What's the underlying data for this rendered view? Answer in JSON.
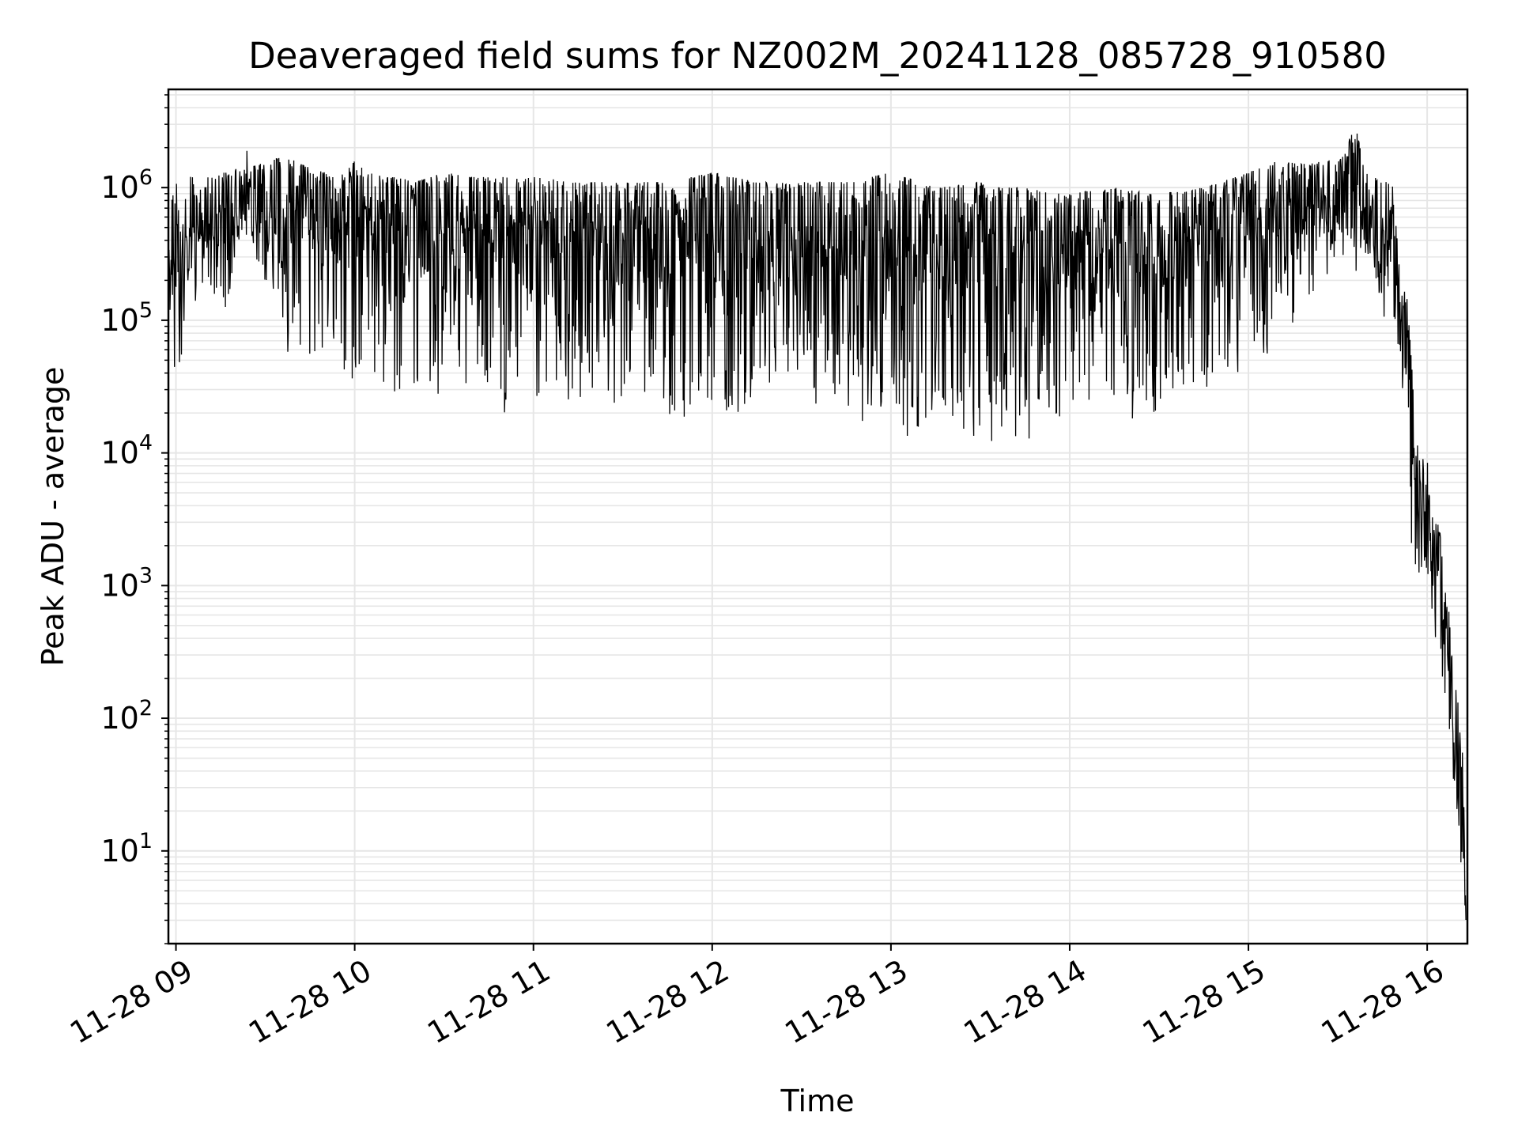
{
  "chart_data": {
    "type": "line",
    "title": "Deaveraged field sums for NZ002M_20241128_085728_910580",
    "xlabel": "Time",
    "ylabel": "Peak ADU - average",
    "yscale": "log",
    "grid": "major and minor",
    "line_color": "#000000",
    "xlim": [
      "2024-11-28 08:57:28",
      "2024-11-28 16:13:30"
    ],
    "ylim": [
      2,
      5500000
    ],
    "xticks": [
      {
        "value": "2024-11-28 09:00",
        "label": "11-28 09"
      },
      {
        "value": "2024-11-28 10:00",
        "label": "11-28 10"
      },
      {
        "value": "2024-11-28 11:00",
        "label": "11-28 11"
      },
      {
        "value": "2024-11-28 12:00",
        "label": "11-28 12"
      },
      {
        "value": "2024-11-28 13:00",
        "label": "11-28 13"
      },
      {
        "value": "2024-11-28 14:00",
        "label": "11-28 14"
      },
      {
        "value": "2024-11-28 15:00",
        "label": "11-28 15"
      },
      {
        "value": "2024-11-28 16:00",
        "label": "11-28 16"
      }
    ],
    "yticks": [
      {
        "value": 10,
        "base": "10",
        "exp": "1"
      },
      {
        "value": 100,
        "base": "10",
        "exp": "2"
      },
      {
        "value": 1000,
        "base": "10",
        "exp": "3"
      },
      {
        "value": 10000,
        "base": "10",
        "exp": "4"
      },
      {
        "value": 100000,
        "base": "10",
        "exp": "5"
      },
      {
        "value": 1000000,
        "base": "10",
        "exp": "6"
      }
    ],
    "series": [
      {
        "x": [
          "2024-11-28 08:57:30",
          "2024-11-28 09:00:00",
          "2024-11-28 09:02:00",
          "2024-11-28 09:03:30",
          "2024-11-28 09:05:00",
          "2024-11-28 09:08:00",
          "2024-11-28 09:10:00",
          "2024-11-28 09:12:00",
          "2024-11-28 09:15:00",
          "2024-11-28 09:20:00",
          "2024-11-28 09:25:00",
          "2024-11-28 09:28:00",
          "2024-11-28 09:30:00",
          "2024-11-28 09:35:00",
          "2024-11-28 09:40:00",
          "2024-11-28 09:45:00",
          "2024-11-28 09:50:00",
          "2024-11-28 09:52:00",
          "2024-11-28 09:55:00",
          "2024-11-28 10:00:00",
          "2024-11-28 10:05:00",
          "2024-11-28 10:10:00",
          "2024-11-28 10:15:00",
          "2024-11-28 10:20:00",
          "2024-11-28 10:30:00",
          "2024-11-28 10:40:00",
          "2024-11-28 10:50:00",
          "2024-11-28 11:00:00",
          "2024-11-28 11:15:00",
          "2024-11-28 11:30:00",
          "2024-11-28 11:45:00",
          "2024-11-28 12:00:00",
          "2024-11-28 12:15:00",
          "2024-11-28 12:30:00",
          "2024-11-28 12:45:00",
          "2024-11-28 13:00:00",
          "2024-11-28 13:15:00",
          "2024-11-28 13:30:00",
          "2024-11-28 13:35:00",
          "2024-11-28 13:45:00",
          "2024-11-28 13:55:00",
          "2024-11-28 14:00:00",
          "2024-11-28 14:15:00",
          "2024-11-28 14:30:00",
          "2024-11-28 14:45:00",
          "2024-11-28 15:00:00",
          "2024-11-28 15:10:00",
          "2024-11-28 15:20:00",
          "2024-11-28 15:30:00",
          "2024-11-28 15:36:00",
          "2024-11-28 15:40:00",
          "2024-11-28 15:45:00",
          "2024-11-28 15:49:00",
          "2024-11-28 15:51:00",
          "2024-11-28 15:53:00",
          "2024-11-28 15:55:00",
          "2024-11-28 15:57:00",
          "2024-11-28 15:58:00",
          "2024-11-28 16:00:00",
          "2024-11-28 16:02:00",
          "2024-11-28 16:04:00",
          "2024-11-28 16:06:00",
          "2024-11-28 16:08:00",
          "2024-11-28 16:10:00",
          "2024-11-28 16:12:00",
          "2024-11-28 16:13:00"
        ],
        "top": [
          600000,
          1200000,
          400000,
          1300000,
          1200000,
          1200000,
          1300000,
          1200000,
          1300000,
          1400000,
          2200000,
          1500000,
          1600000,
          1700000,
          1600000,
          1400000,
          1300000,
          1200000,
          1200000,
          1600000,
          1300000,
          1200000,
          1200000,
          1100000,
          1300000,
          1200000,
          1200000,
          1200000,
          1100000,
          1100000,
          1100000,
          1300000,
          1100000,
          1100000,
          1100000,
          1300000,
          1000000,
          1100000,
          1000000,
          1000000,
          900000,
          900000,
          1000000,
          900000,
          1000000,
          1300000,
          1600000,
          1500000,
          1700000,
          2800000,
          1300000,
          1200000,
          1000000,
          200000,
          180000,
          40000,
          10000,
          9000,
          9000,
          3000,
          3000,
          1000,
          500,
          160,
          50,
          5
        ],
        "bottom": [
          150000,
          30000,
          20000,
          300000,
          80000,
          200000,
          130000,
          80000,
          60000,
          300000,
          500000,
          100000,
          150000,
          60000,
          40000,
          50000,
          35000,
          30000,
          40000,
          35000,
          35000,
          30000,
          25000,
          30000,
          25000,
          30000,
          20000,
          25000,
          25000,
          20000,
          17000,
          20000,
          20000,
          25000,
          20000,
          12000,
          15000,
          12000,
          12000,
          12000,
          17000,
          17000,
          17000,
          20000,
          25000,
          45000,
          60000,
          100000,
          200000,
          200000,
          300000,
          100000,
          90000,
          35000,
          10000,
          1600,
          1000,
          900,
          700,
          300,
          200,
          120,
          40,
          20,
          4,
          3
        ]
      }
    ]
  }
}
